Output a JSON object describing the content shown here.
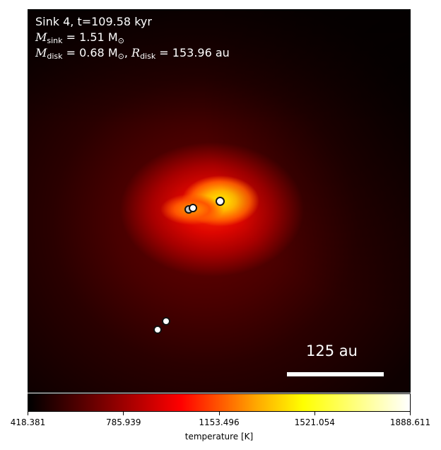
{
  "annotation": {
    "line1": "Sink 4, t=109.58 kyr",
    "m_sink_symbol": "M",
    "m_sink_sub": "sink",
    "m_sink_value": " = 1.51 M",
    "m_sink_unit_sub": "⊙",
    "m_disk_symbol": "M",
    "m_disk_sub": "disk",
    "m_disk_value": " = 0.68 M",
    "m_disk_unit_sub": "⊙",
    "r_disk_symbol": "R",
    "r_disk_sub": "disk",
    "r_disk_value": " = 153.96 au"
  },
  "scale_bar": {
    "label": "125 au",
    "length_au": 125
  },
  "colorbar": {
    "label": "temperature [K]",
    "min": 418.381,
    "max": 1888.611,
    "ticks": [
      "418.381",
      "785.939",
      "1153.496",
      "1521.054",
      "1888.611"
    ],
    "colormap": "hot"
  }
}
